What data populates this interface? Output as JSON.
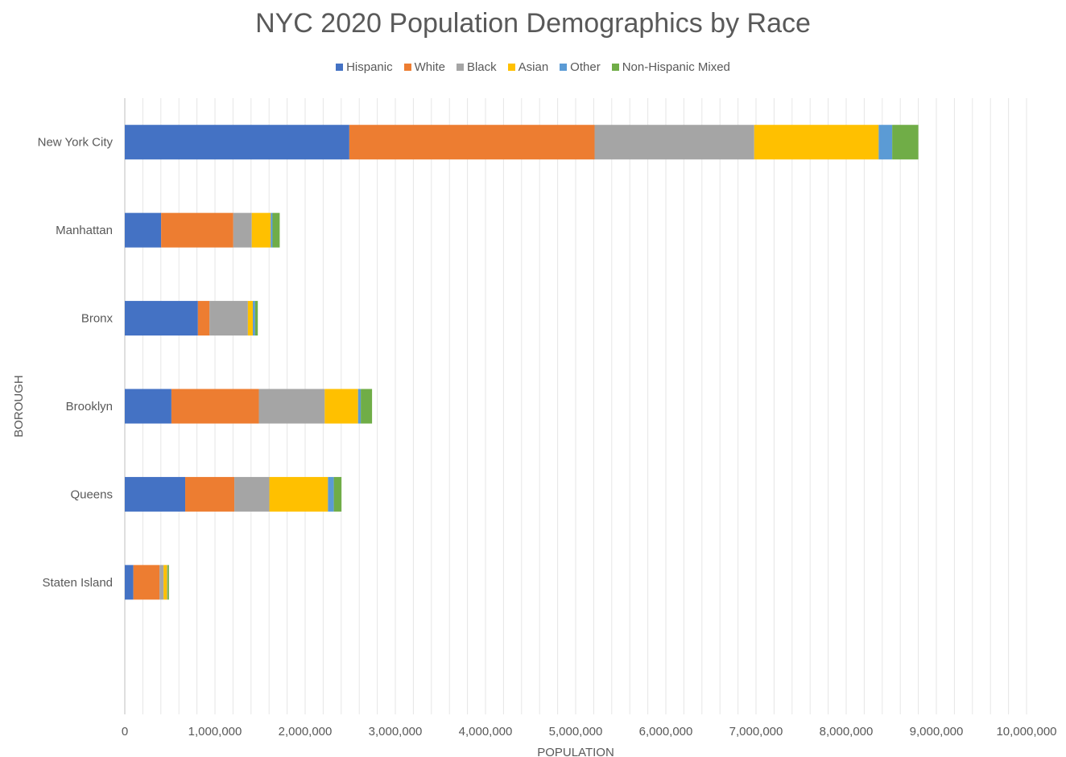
{
  "chart_data": {
    "type": "bar",
    "orientation": "horizontal",
    "stacked": true,
    "title": "NYC 2020 Population Demographics by Race",
    "xlabel": "POPULATION",
    "ylabel": "BOROUGH",
    "xlim": [
      0,
      10000000
    ],
    "x_ticks": [
      0,
      1000000,
      2000000,
      3000000,
      4000000,
      5000000,
      6000000,
      7000000,
      8000000,
      9000000,
      10000000
    ],
    "x_tick_labels": [
      "0",
      "1,000,000",
      "2,000,000",
      "3,000,000",
      "4,000,000",
      "5,000,000",
      "6,000,000",
      "7,000,000",
      "8,000,000",
      "9,000,000",
      "10,000,000"
    ],
    "grid": "vertical gridlines every 200,000",
    "legend_position": "top",
    "categories": [
      "New York City",
      "Manhattan",
      "Bronx",
      "Brooklyn",
      "Queens",
      "Staten Island"
    ],
    "series": [
      {
        "name": "Hispanic",
        "color": "#4472C4",
        "values": [
          2490000,
          403000,
          811000,
          517000,
          670000,
          95000
        ]
      },
      {
        "name": "White",
        "color": "#ED7D31",
        "values": [
          2720000,
          800000,
          129000,
          970000,
          545000,
          290000
        ]
      },
      {
        "name": "Black",
        "color": "#A5A5A5",
        "values": [
          1770000,
          205000,
          425000,
          730000,
          388000,
          45000
        ]
      },
      {
        "name": "Asian",
        "color": "#FFC000",
        "values": [
          1380000,
          210000,
          55000,
          370000,
          650000,
          40000
        ]
      },
      {
        "name": "Other",
        "color": "#5B9BD5",
        "values": [
          150000,
          20000,
          25000,
          30000,
          65000,
          5000
        ]
      },
      {
        "name": "Non-Hispanic Mixed",
        "color": "#70AD47",
        "values": [
          290000,
          80000,
          30000,
          125000,
          85000,
          15000
        ]
      }
    ]
  }
}
